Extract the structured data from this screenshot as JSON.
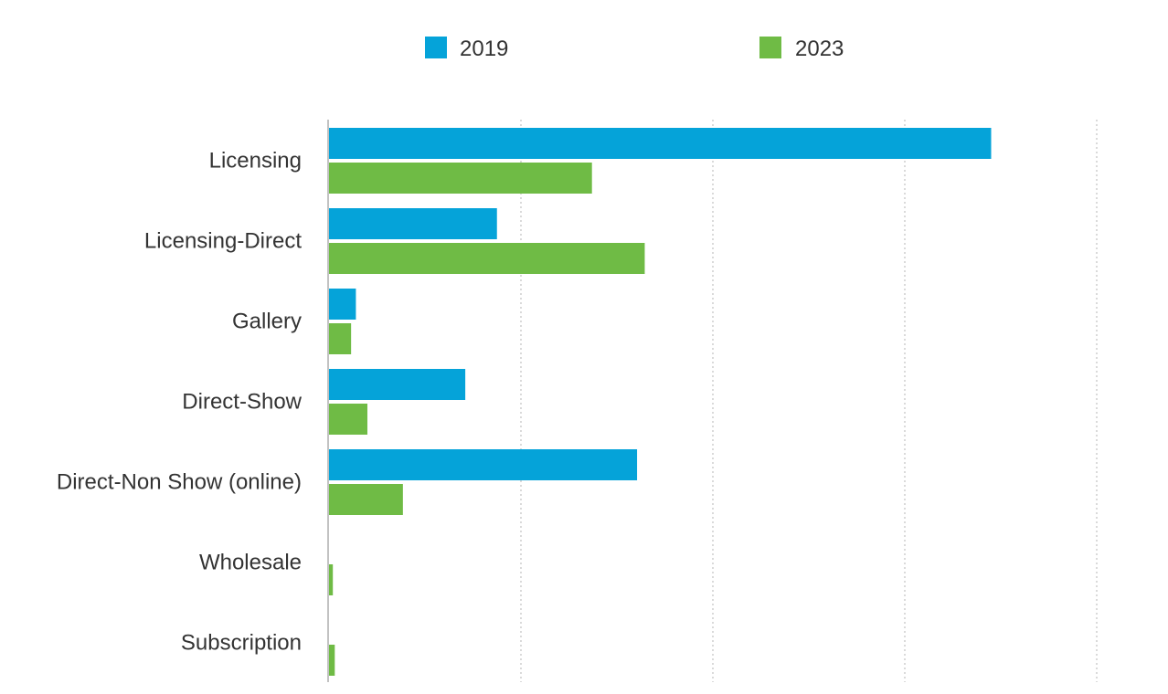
{
  "chart_data": {
    "type": "bar",
    "orientation": "horizontal",
    "categories": [
      "Licensing",
      "Licensing-Direct",
      "Gallery",
      "Direct-Show",
      "Direct-Non Show (online)",
      "Wholesale",
      "Subscription"
    ],
    "series": [
      {
        "name": "2019",
        "color": "#05a3d9",
        "values": [
          69,
          17.5,
          2.8,
          14.2,
          32.1,
          0,
          0
        ]
      },
      {
        "name": "2023",
        "color": "#6fbb45",
        "values": [
          27.4,
          32.9,
          2.3,
          4,
          7.7,
          0.4,
          0.6
        ]
      }
    ],
    "xlim": [
      0,
      80
    ],
    "grid": {
      "x": true,
      "style": "dotted"
    },
    "legend": {
      "position": "top",
      "entries": [
        "2019",
        "2023"
      ]
    },
    "title": "",
    "xlabel": "",
    "ylabel": ""
  }
}
